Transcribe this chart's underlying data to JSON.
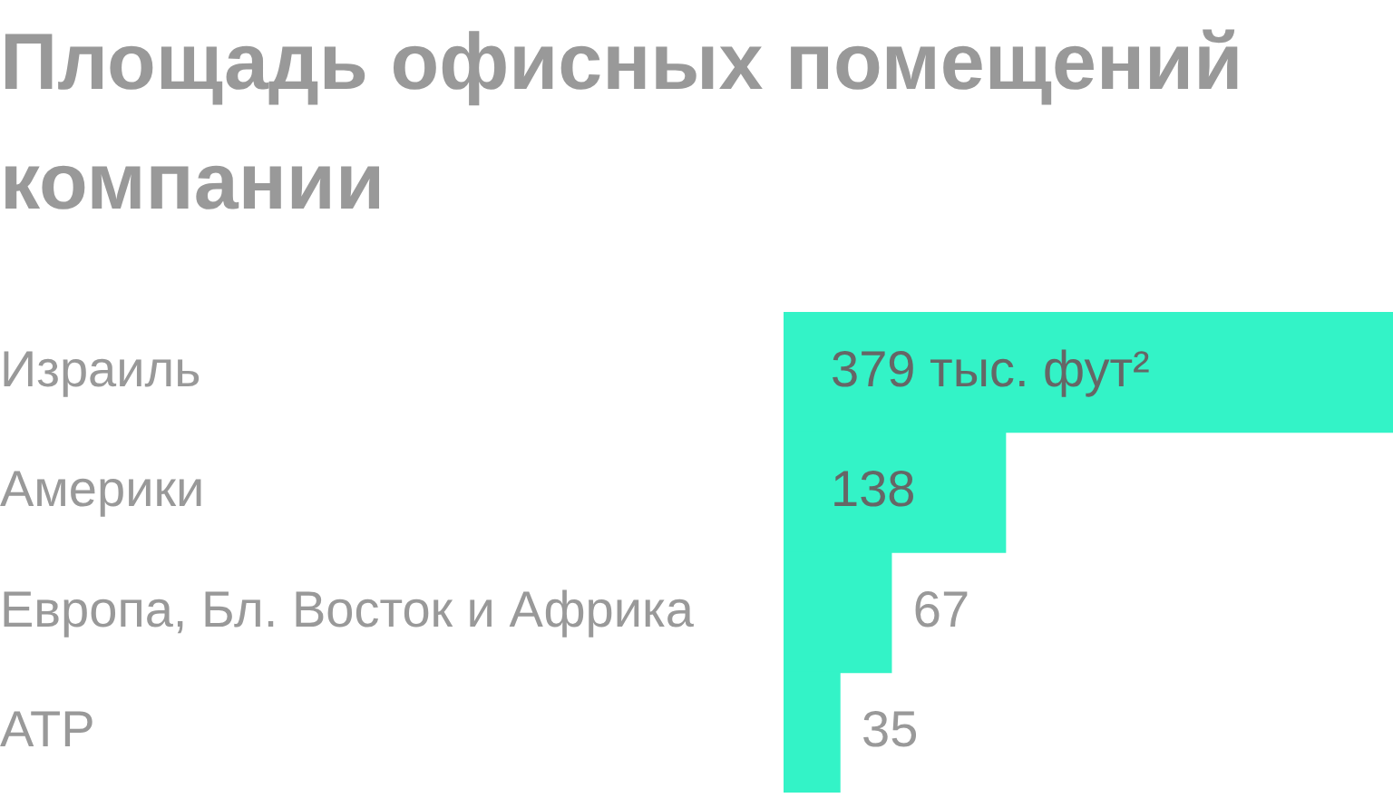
{
  "chart_data": {
    "type": "bar",
    "orientation": "horizontal",
    "title": "Площадь офисных помещений компании",
    "categories": [
      "Израиль",
      "Америки",
      "Европа, Бл. Восток и Африка",
      "АТР"
    ],
    "values": [
      379,
      138,
      67,
      35
    ],
    "color": "#33f3c7",
    "value_labels": [
      "379 тыс. фут²",
      "138",
      "67",
      "35"
    ],
    "tick_labels": "y"
  }
}
